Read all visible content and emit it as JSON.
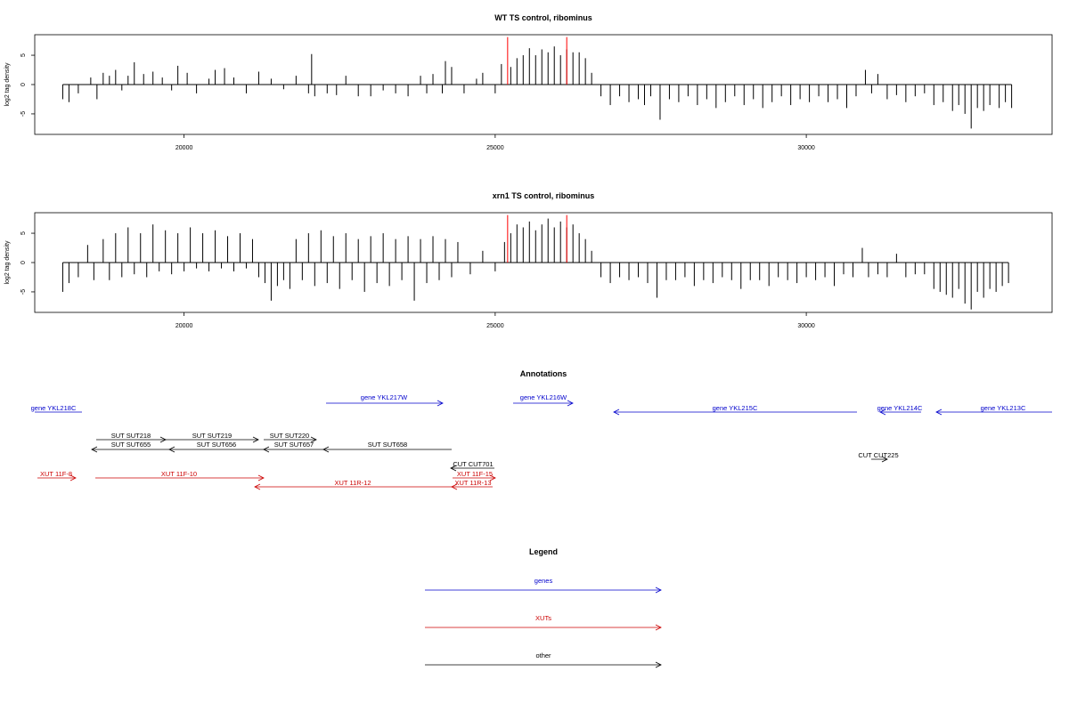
{
  "chart_data": [
    {
      "type": "bar",
      "title": "WT TS control, ribominus",
      "ylabel": "log2 tag density",
      "xlabel": "",
      "xlim": [
        17600,
        33950
      ],
      "ylim": [
        -8.5,
        8.5
      ],
      "xticks": [
        20000,
        25000,
        30000
      ],
      "yticks": [
        -5,
        0,
        5
      ],
      "series": [
        {
          "values": [
            [
              18050,
              -2.5
            ],
            [
              18150,
              -3
            ],
            [
              18300,
              -1.5
            ],
            [
              18500,
              1.2
            ],
            [
              18600,
              -2.5
            ],
            [
              18700,
              2
            ],
            [
              18800,
              1.5
            ],
            [
              18900,
              2.5
            ],
            [
              19000,
              -1
            ],
            [
              19100,
              1.5
            ],
            [
              19200,
              3.8
            ],
            [
              19350,
              1.8
            ],
            [
              19500,
              2.2
            ],
            [
              19650,
              1.2
            ],
            [
              19800,
              -1
            ],
            [
              19900,
              3.2
            ],
            [
              20050,
              2
            ],
            [
              20200,
              -1.5
            ],
            [
              20400,
              1
            ],
            [
              20500,
              2.5
            ],
            [
              20650,
              2.8
            ],
            [
              20800,
              1.2
            ],
            [
              21000,
              -1.5
            ],
            [
              21200,
              2.2
            ],
            [
              21400,
              1
            ],
            [
              21600,
              -0.8
            ],
            [
              21800,
              1.5
            ],
            [
              22000,
              -1.5
            ],
            [
              22050,
              5.2
            ],
            [
              22100,
              -2
            ],
            [
              22300,
              -1.5
            ],
            [
              22450,
              -1.8
            ],
            [
              22600,
              1.5
            ],
            [
              22800,
              -2
            ],
            [
              23000,
              -2
            ],
            [
              23200,
              -1
            ],
            [
              23400,
              -1.5
            ],
            [
              23600,
              -2
            ],
            [
              23800,
              1.5
            ],
            [
              23900,
              -1.5
            ],
            [
              24000,
              1.8
            ],
            [
              24150,
              -1.5
            ],
            [
              24200,
              4
            ],
            [
              24300,
              3
            ],
            [
              24500,
              -1.5
            ],
            [
              24700,
              1
            ],
            [
              24800,
              2
            ],
            [
              25000,
              -1.5
            ],
            [
              25100,
              3.5
            ],
            [
              25250,
              3
            ],
            [
              25350,
              4.5
            ],
            [
              25450,
              5
            ],
            [
              25550,
              6.2
            ],
            [
              25650,
              5
            ],
            [
              25750,
              6
            ],
            [
              25850,
              5.5
            ],
            [
              25950,
              6.5
            ],
            [
              26050,
              5
            ],
            [
              26150,
              6
            ],
            [
              26250,
              5.5
            ],
            [
              26350,
              5.5
            ],
            [
              26450,
              4.5
            ],
            [
              26550,
              2
            ],
            [
              26700,
              -2
            ],
            [
              26850,
              -3.5
            ],
            [
              27000,
              -2
            ],
            [
              27150,
              -3
            ],
            [
              27300,
              -2.5
            ],
            [
              27400,
              -3.5
            ],
            [
              27500,
              -2
            ],
            [
              27650,
              -6
            ],
            [
              27800,
              -2.5
            ],
            [
              27950,
              -3
            ],
            [
              28100,
              -2
            ],
            [
              28250,
              -3.5
            ],
            [
              28400,
              -2.5
            ],
            [
              28550,
              -4
            ],
            [
              28700,
              -3
            ],
            [
              28850,
              -2
            ],
            [
              29000,
              -3.5
            ],
            [
              29150,
              -2.5
            ],
            [
              29300,
              -4
            ],
            [
              29450,
              -3
            ],
            [
              29600,
              -2
            ],
            [
              29750,
              -3.5
            ],
            [
              29900,
              -2.5
            ],
            [
              30050,
              -3
            ],
            [
              30200,
              -2
            ],
            [
              30350,
              -3
            ],
            [
              30500,
              -2.5
            ],
            [
              30650,
              -4
            ],
            [
              30800,
              -2
            ],
            [
              30950,
              2.5
            ],
            [
              31050,
              -1.5
            ],
            [
              31150,
              1.8
            ],
            [
              31300,
              -2.5
            ],
            [
              31450,
              -1.8
            ],
            [
              31600,
              -3
            ],
            [
              31750,
              -2
            ],
            [
              31900,
              -1.5
            ],
            [
              32050,
              -3.5
            ],
            [
              32200,
              -3
            ],
            [
              32350,
              -4.5
            ],
            [
              32450,
              -3.5
            ],
            [
              32550,
              -5
            ],
            [
              32650,
              -7.5
            ],
            [
              32750,
              -4
            ],
            [
              32850,
              -4.5
            ],
            [
              32950,
              -3.5
            ],
            [
              33100,
              -4
            ],
            [
              33200,
              -3
            ],
            [
              33300,
              -4
            ]
          ]
        }
      ],
      "annotations": [
        25200,
        26150
      ]
    },
    {
      "type": "bar",
      "title": "xrn1 TS control, ribominus",
      "ylabel": "log2 tag density",
      "xlabel": "",
      "xlim": [
        17600,
        33950
      ],
      "ylim": [
        -8.5,
        8.5
      ],
      "xticks": [
        20000,
        25000,
        30000
      ],
      "yticks": [
        -5,
        0,
        5
      ],
      "series": [
        {
          "values": [
            [
              18050,
              -5
            ],
            [
              18150,
              -3.5
            ],
            [
              18300,
              -2.5
            ],
            [
              18450,
              3
            ],
            [
              18550,
              -3
            ],
            [
              18700,
              4
            ],
            [
              18800,
              -3
            ],
            [
              18900,
              5
            ],
            [
              19000,
              -2.5
            ],
            [
              19100,
              6
            ],
            [
              19200,
              -2
            ],
            [
              19300,
              5
            ],
            [
              19400,
              -2.5
            ],
            [
              19500,
              6.5
            ],
            [
              19600,
              -1.5
            ],
            [
              19700,
              5.5
            ],
            [
              19800,
              -2
            ],
            [
              19900,
              5
            ],
            [
              20000,
              -1.5
            ],
            [
              20100,
              6
            ],
            [
              20200,
              -1
            ],
            [
              20300,
              5
            ],
            [
              20400,
              -1.5
            ],
            [
              20500,
              5.5
            ],
            [
              20600,
              -1
            ],
            [
              20700,
              4.5
            ],
            [
              20800,
              -1.5
            ],
            [
              20900,
              5
            ],
            [
              21000,
              -1
            ],
            [
              21100,
              4
            ],
            [
              21200,
              -2.5
            ],
            [
              21300,
              -3.5
            ],
            [
              21400,
              -6.5
            ],
            [
              21500,
              -4
            ],
            [
              21600,
              -3
            ],
            [
              21700,
              -4.5
            ],
            [
              21800,
              4
            ],
            [
              21900,
              -3
            ],
            [
              22000,
              5
            ],
            [
              22100,
              -4
            ],
            [
              22200,
              5.5
            ],
            [
              22300,
              -3.5
            ],
            [
              22400,
              4.5
            ],
            [
              22500,
              -4.5
            ],
            [
              22600,
              5
            ],
            [
              22700,
              -3
            ],
            [
              22800,
              4
            ],
            [
              22900,
              -5
            ],
            [
              23000,
              4.5
            ],
            [
              23100,
              -3.5
            ],
            [
              23200,
              5
            ],
            [
              23300,
              -4
            ],
            [
              23400,
              4
            ],
            [
              23500,
              -3
            ],
            [
              23600,
              4.5
            ],
            [
              23700,
              -6.5
            ],
            [
              23800,
              4
            ],
            [
              23900,
              -3.5
            ],
            [
              24000,
              4.5
            ],
            [
              24100,
              -3
            ],
            [
              24200,
              4
            ],
            [
              24300,
              -2.5
            ],
            [
              24400,
              3.5
            ],
            [
              24600,
              -2
            ],
            [
              24800,
              2
            ],
            [
              25000,
              -1.5
            ],
            [
              25150,
              3.5
            ],
            [
              25250,
              5
            ],
            [
              25350,
              6.5
            ],
            [
              25450,
              6
            ],
            [
              25550,
              7
            ],
            [
              25650,
              5.5
            ],
            [
              25750,
              6.5
            ],
            [
              25850,
              7.5
            ],
            [
              25950,
              6
            ],
            [
              26050,
              7
            ],
            [
              26150,
              6
            ],
            [
              26250,
              6.5
            ],
            [
              26350,
              5
            ],
            [
              26450,
              4
            ],
            [
              26550,
              2
            ],
            [
              26700,
              -2.5
            ],
            [
              26850,
              -3.5
            ],
            [
              27000,
              -2.5
            ],
            [
              27150,
              -3
            ],
            [
              27300,
              -2.5
            ],
            [
              27450,
              -3.5
            ],
            [
              27600,
              -6
            ],
            [
              27750,
              -3
            ],
            [
              27900,
              -3
            ],
            [
              28050,
              -2.5
            ],
            [
              28200,
              -4
            ],
            [
              28350,
              -3
            ],
            [
              28500,
              -3.5
            ],
            [
              28650,
              -2.5
            ],
            [
              28800,
              -3
            ],
            [
              28950,
              -4.5
            ],
            [
              29100,
              -3
            ],
            [
              29250,
              -3
            ],
            [
              29400,
              -4
            ],
            [
              29550,
              -2.5
            ],
            [
              29700,
              -3
            ],
            [
              29850,
              -3.5
            ],
            [
              30000,
              -2.5
            ],
            [
              30150,
              -3
            ],
            [
              30300,
              -2.5
            ],
            [
              30450,
              -4
            ],
            [
              30600,
              -2
            ],
            [
              30750,
              -2.5
            ],
            [
              30900,
              2.5
            ],
            [
              31000,
              -2.5
            ],
            [
              31150,
              -2
            ],
            [
              31300,
              -2.5
            ],
            [
              31450,
              1.5
            ],
            [
              31600,
              -2.5
            ],
            [
              31750,
              -2
            ],
            [
              31900,
              -2
            ],
            [
              32050,
              -4.5
            ],
            [
              32150,
              -5
            ],
            [
              32250,
              -5.5
            ],
            [
              32350,
              -6
            ],
            [
              32450,
              -4.5
            ],
            [
              32550,
              -7
            ],
            [
              32650,
              -8
            ],
            [
              32750,
              -5
            ],
            [
              32850,
              -6
            ],
            [
              32950,
              -4.5
            ],
            [
              33050,
              -5
            ],
            [
              33150,
              -4
            ],
            [
              33250,
              -3.5
            ]
          ]
        }
      ],
      "annotations": [
        25200,
        26150
      ]
    }
  ],
  "annotations_panel": {
    "title": "Annotations",
    "items": [
      {
        "label": "gene YKL218C",
        "color": "#0000cc"
      },
      {
        "label": "gene YKL217W",
        "color": "#0000cc"
      },
      {
        "label": "gene YKL216W",
        "color": "#0000cc"
      },
      {
        "label": "gene YKL215C",
        "color": "#0000cc"
      },
      {
        "label": "gene YKL214C",
        "color": "#0000cc"
      },
      {
        "label": "gene YKL213C",
        "color": "#0000cc"
      },
      {
        "label": "SUT SUT218",
        "color": "#000000"
      },
      {
        "label": "SUT SUT219",
        "color": "#000000"
      },
      {
        "label": "SUT SUT220",
        "color": "#000000"
      },
      {
        "label": "SUT SUT655",
        "color": "#000000"
      },
      {
        "label": "SUT SUT656",
        "color": "#000000"
      },
      {
        "label": "SUT SUT657",
        "color": "#000000"
      },
      {
        "label": "SUT SUT658",
        "color": "#000000"
      },
      {
        "label": "CUT CUT701",
        "color": "#000000"
      },
      {
        "label": "CUT CUT225",
        "color": "#000000"
      },
      {
        "label": "XUT 11F-8",
        "color": "#cc0000"
      },
      {
        "label": "XUT 11F-10",
        "color": "#cc0000"
      },
      {
        "label": "XUT 11R-12",
        "color": "#cc0000"
      },
      {
        "label": "XUT 11F-15",
        "color": "#cc0000"
      },
      {
        "label": "XUT 11R-13",
        "color": "#cc0000"
      }
    ]
  },
  "legend": {
    "title": "Legend",
    "items": [
      {
        "label": "genes",
        "color": "#0000cc"
      },
      {
        "label": "XUTs",
        "color": "#cc0000"
      },
      {
        "label": "other",
        "color": "#000000"
      }
    ]
  },
  "colors": {
    "annotation_line": "#ff0000",
    "bar": "#000000"
  }
}
